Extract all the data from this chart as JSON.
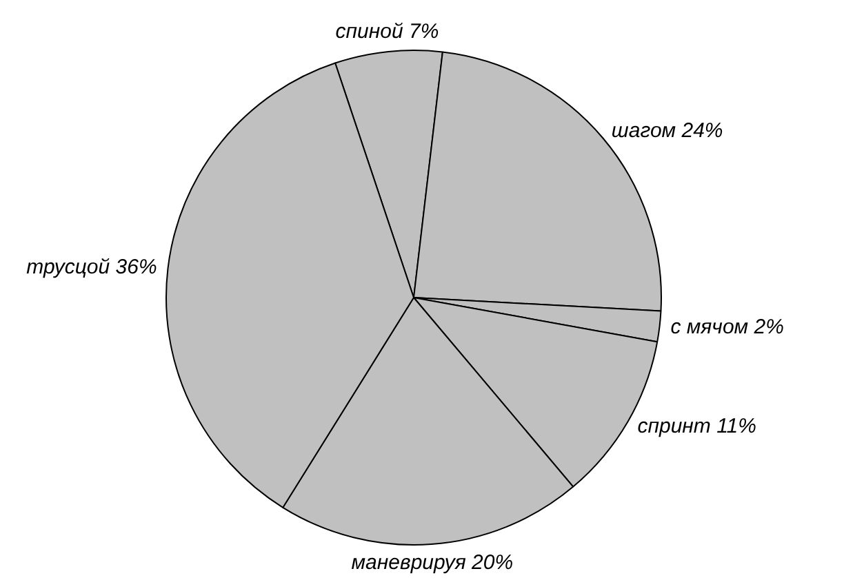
{
  "chart_data": {
    "type": "pie",
    "categories": [
      "спиной",
      "шагом",
      "с мячом",
      "спринт",
      "маневрируя",
      "трусцой"
    ],
    "values": [
      7,
      24,
      2,
      11,
      20,
      36
    ],
    "value_labels": [
      "7%",
      "24%",
      "2%",
      "11%",
      "20%",
      "36%"
    ],
    "colors": [
      "#c0c0c0",
      "#c0c0c0",
      "#c0c0c0",
      "#c0c0c0",
      "#c0c0c0",
      "#c0c0c0"
    ],
    "legend": false
  }
}
